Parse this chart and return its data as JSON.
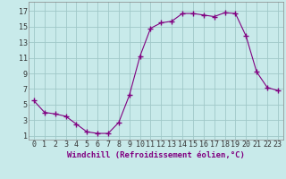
{
  "x": [
    0,
    1,
    2,
    3,
    4,
    5,
    6,
    7,
    8,
    9,
    10,
    11,
    12,
    13,
    14,
    15,
    16,
    17,
    18,
    19,
    20,
    21,
    22,
    23
  ],
  "y": [
    5.5,
    4.0,
    3.8,
    3.5,
    2.5,
    1.5,
    1.3,
    1.3,
    2.7,
    6.2,
    11.2,
    14.8,
    15.5,
    15.7,
    16.7,
    16.7,
    16.5,
    16.3,
    16.8,
    16.7,
    13.8,
    9.2,
    7.2,
    6.8
  ],
  "line_color": "#800080",
  "marker": "+",
  "marker_size": 4,
  "bg_color": "#c8eaea",
  "grid_color": "#a0c8c8",
  "xlabel": "Windchill (Refroidissement éolien,°C)",
  "xlabel_fontsize": 6.5,
  "ylabel_ticks": [
    1,
    3,
    5,
    7,
    9,
    11,
    13,
    15,
    17
  ],
  "xlim": [
    -0.5,
    23.5
  ],
  "ylim": [
    0.5,
    18.2
  ],
  "xticks": [
    0,
    1,
    2,
    3,
    4,
    5,
    6,
    7,
    8,
    9,
    10,
    11,
    12,
    13,
    14,
    15,
    16,
    17,
    18,
    19,
    20,
    21,
    22,
    23
  ],
  "tick_fontsize": 6.0
}
